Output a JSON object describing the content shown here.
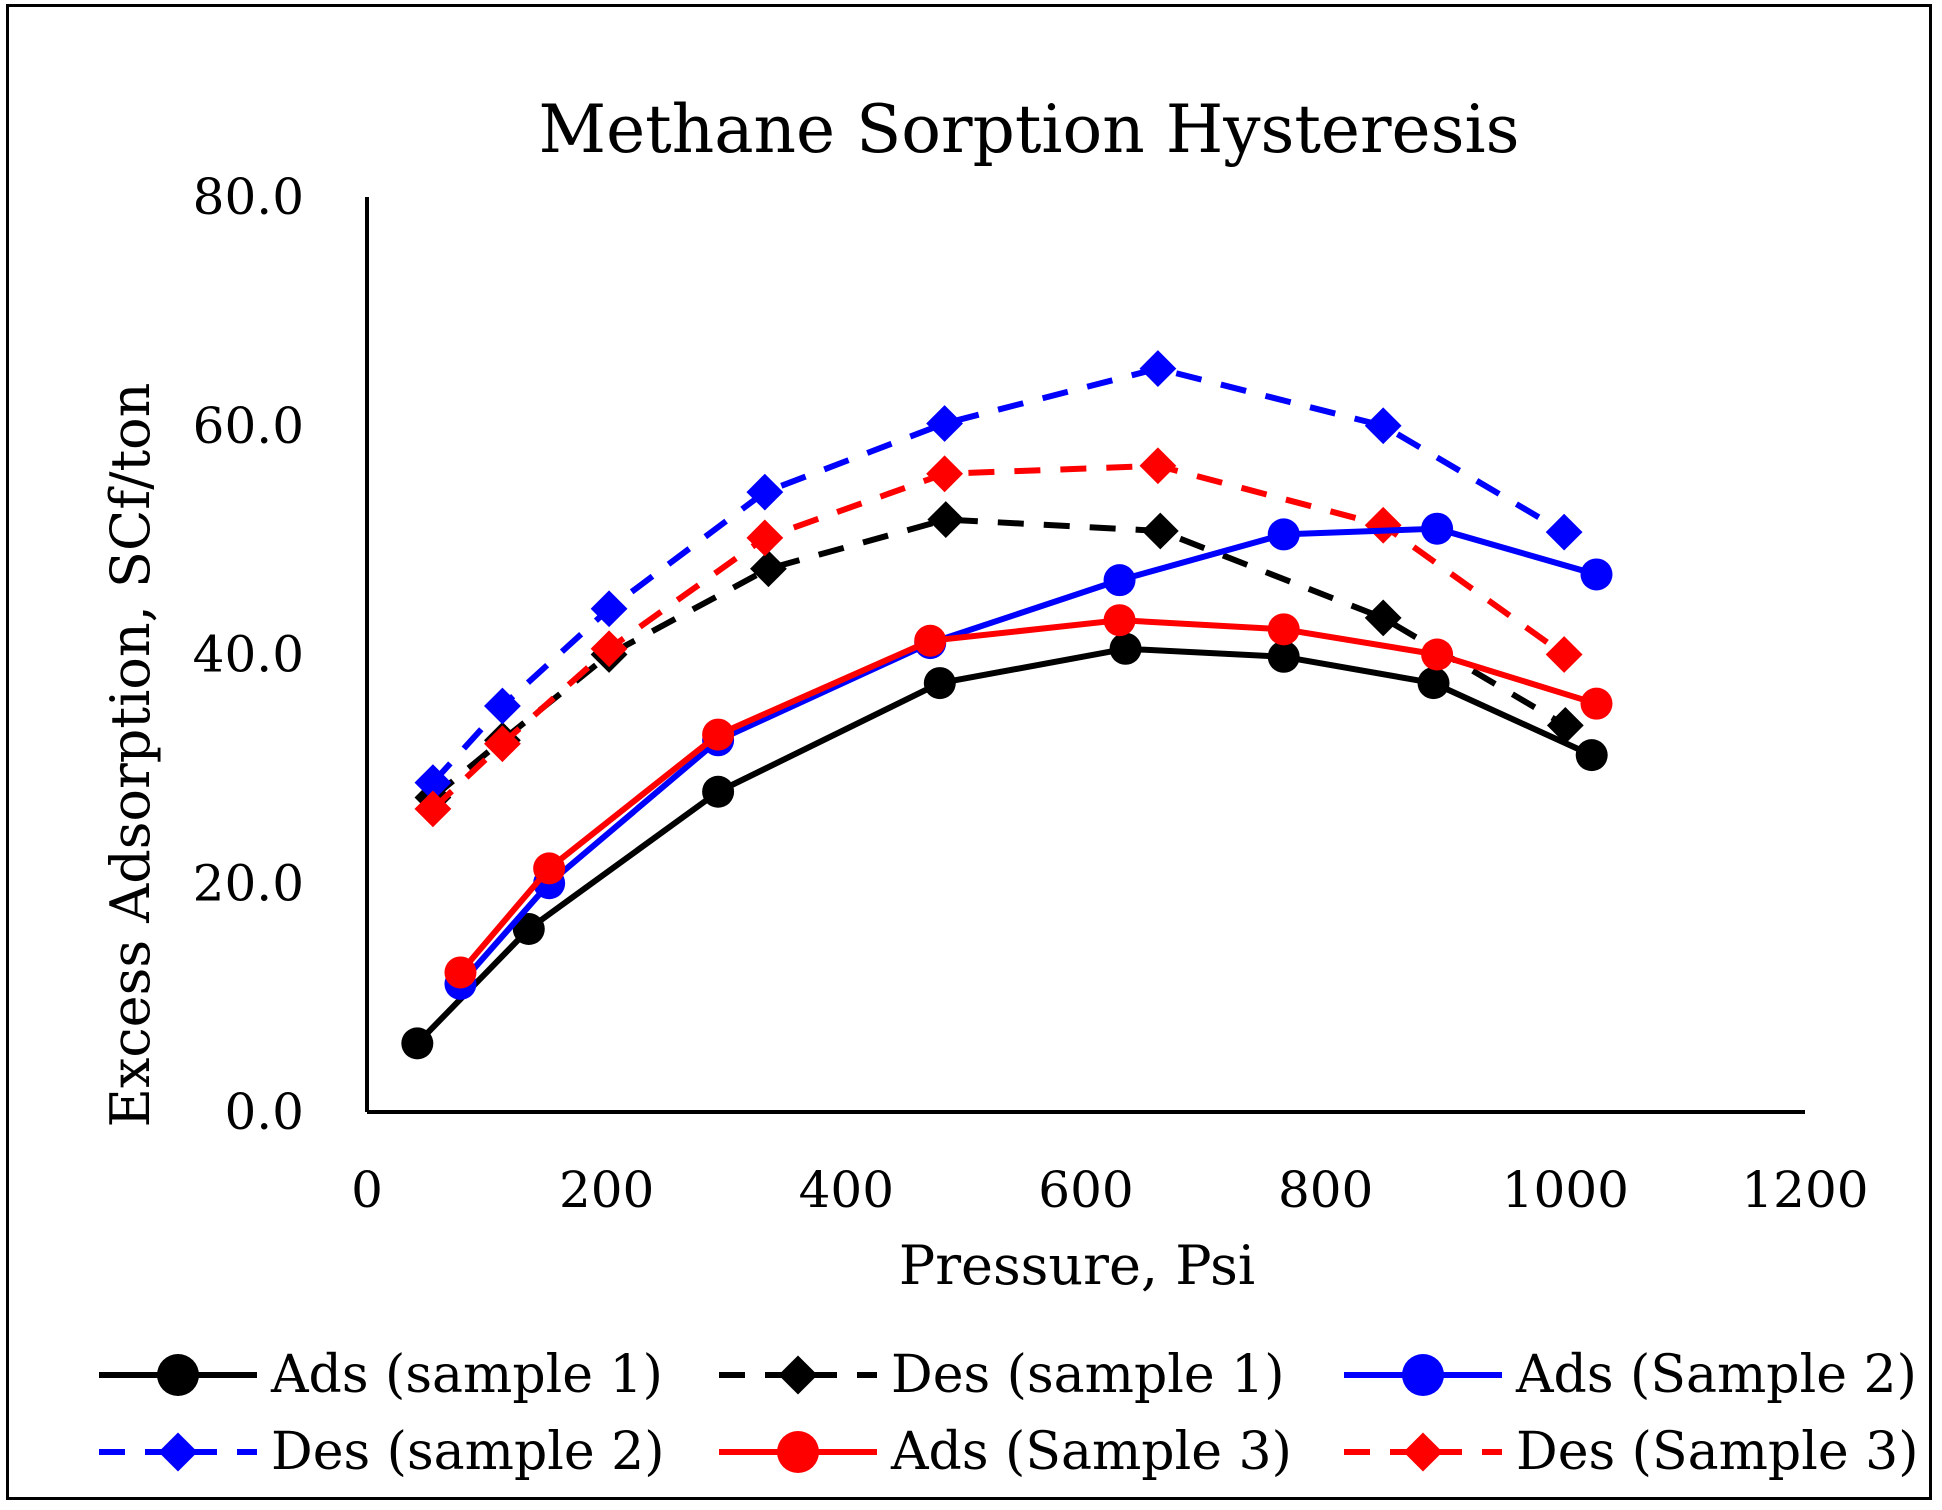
{
  "chart_data": {
    "type": "line",
    "title": "Methane Sorption Hysteresis",
    "xlabel": "Pressure, Psi",
    "ylabel": "Excess Adsorption, SCf/ton",
    "xlim": [
      0,
      1200
    ],
    "ylim": [
      0,
      80
    ],
    "xticks": [
      0,
      200,
      400,
      600,
      800,
      1000,
      1200
    ],
    "yticks": [
      0,
      20,
      40,
      60,
      80
    ],
    "xtick_labels": [
      "0",
      "200",
      "400",
      "600",
      "800",
      "1000",
      "1200"
    ],
    "ytick_labels": [
      "0.0",
      "20.0",
      "40.0",
      "60.0",
      "80.0"
    ],
    "grid": false,
    "legend_position": "bottom",
    "series": [
      {
        "name": "Ads (sample 1)",
        "color": "#000000",
        "dash": "solid",
        "marker": "circle",
        "x": [
          42,
          135,
          293,
          478,
          633,
          765,
          890,
          1022
        ],
        "y": [
          6.0,
          16.0,
          28.0,
          37.5,
          40.5,
          39.8,
          37.5,
          31.2
        ]
      },
      {
        "name": "Des (sample 1)",
        "color": "#000000",
        "dash": "dashed",
        "marker": "diamond",
        "x": [
          55,
          113,
          202,
          335,
          483,
          662,
          848,
          1000
        ],
        "y": [
          27.5,
          32.5,
          40.0,
          47.5,
          51.8,
          50.8,
          43.2,
          33.8
        ]
      },
      {
        "name": "Ads (Sample 2)",
        "color": "#0000ff",
        "dash": "solid",
        "marker": "circle",
        "x": [
          78,
          152,
          293,
          470,
          628,
          765,
          893,
          1026
        ],
        "y": [
          11.2,
          20.0,
          32.5,
          41.0,
          46.5,
          50.5,
          51.0,
          47.0
        ]
      },
      {
        "name": "Des (sample 2)",
        "color": "#0000ff",
        "dash": "dashed",
        "marker": "diamond",
        "x": [
          55,
          113,
          202,
          332,
          482,
          660,
          848,
          999
        ],
        "y": [
          28.8,
          35.5,
          44.0,
          54.2,
          60.2,
          65.0,
          60.0,
          50.7
        ]
      },
      {
        "name": "Ads (Sample 3)",
        "color": "#ff0000",
        "dash": "solid",
        "marker": "circle",
        "x": [
          78,
          152,
          293,
          470,
          628,
          765,
          893,
          1026
        ],
        "y": [
          12.2,
          21.3,
          33.0,
          41.2,
          43.0,
          42.2,
          40.0,
          35.7
        ]
      },
      {
        "name": "Des (Sample 3)",
        "color": "#ff0000",
        "dash": "dashed",
        "marker": "diamond",
        "x": [
          55,
          113,
          202,
          332,
          482,
          660,
          848,
          999
        ],
        "y": [
          26.5,
          32.2,
          40.5,
          50.2,
          55.8,
          56.5,
          51.3,
          40.0
        ]
      }
    ]
  }
}
